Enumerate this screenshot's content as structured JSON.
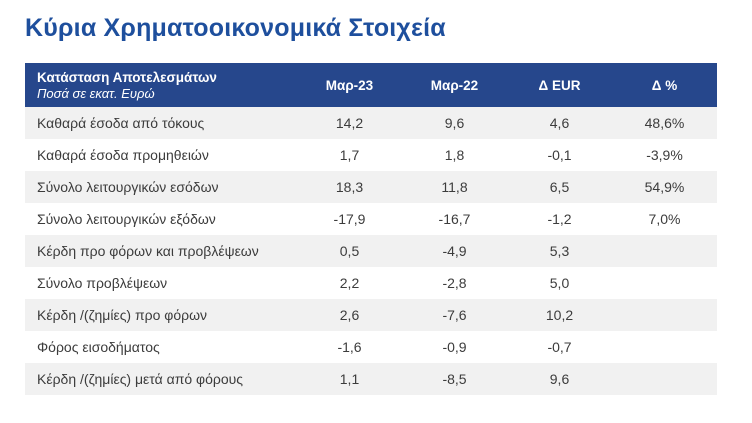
{
  "page_title": "Κύρια Χρηματοοικονομικά Στοιχεία",
  "colors": {
    "title_text": "#1E4F9D",
    "header_bg": "#26478C",
    "header_text": "#FFFFFF",
    "row_alt_bg": "#F1F1F1",
    "row_bg": "#FFFFFF",
    "body_text": "#3C3C3C"
  },
  "table": {
    "header": {
      "title": "Κατάσταση Αποτελεσμάτων",
      "subtitle": "Ποσά σε εκατ. Ευρώ",
      "columns": [
        "Μαρ-23",
        "Μαρ-22",
        "Δ EUR",
        "Δ %"
      ]
    },
    "rows": [
      {
        "label": "Καθαρά έσοδα από τόκους",
        "values": [
          "14,2",
          "9,6",
          "4,6",
          "48,6%"
        ]
      },
      {
        "label": "Καθαρά έσοδα προμηθειών",
        "values": [
          "1,7",
          "1,8",
          "-0,1",
          "-3,9%"
        ]
      },
      {
        "label": "Σύνολο λειτουργικών εσόδων",
        "values": [
          "18,3",
          "11,8",
          "6,5",
          "54,9%"
        ]
      },
      {
        "label": "Σύνολο λειτουργικών εξόδων",
        "values": [
          "-17,9",
          "-16,7",
          "-1,2",
          "7,0%"
        ]
      },
      {
        "label": "Κέρδη προ φόρων και προβλέψεων",
        "values": [
          "0,5",
          "-4,9",
          "5,3",
          ""
        ]
      },
      {
        "label": "Σύνολο προβλέψεων",
        "values": [
          "2,2",
          "-2,8",
          "5,0",
          ""
        ]
      },
      {
        "label": "Κέρδη /(ζημίες) προ φόρων",
        "values": [
          "2,6",
          "-7,6",
          "10,2",
          ""
        ]
      },
      {
        "label": "Φόρος εισοδήματος",
        "values": [
          "-1,6",
          "-0,9",
          "-0,7",
          ""
        ]
      },
      {
        "label": "Κέρδη /(ζημίες) μετά από φόρους",
        "values": [
          "1,1",
          "-8,5",
          "9,6",
          ""
        ]
      }
    ]
  }
}
